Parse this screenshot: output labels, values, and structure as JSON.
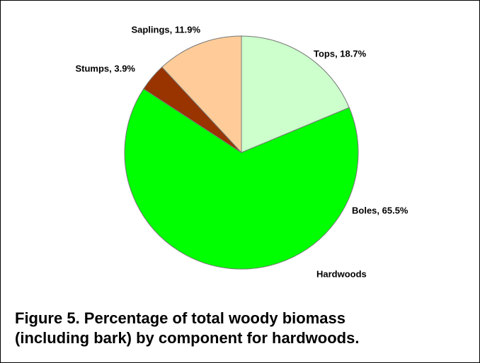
{
  "chart_data": {
    "type": "pie",
    "subtitle": "Hardwoods",
    "caption": [
      "Figure 5. Percentage of total woody biomass",
      "(including bark) by component for hardwoods."
    ],
    "values": [
      18.7,
      65.5,
      3.9,
      11.9
    ],
    "value_labels": [
      "Tops, 18.7%",
      "Boles, 65.5%",
      "Stumps, 3.9%",
      "Saplings, 11.9%"
    ],
    "colors": [
      "#ccffcc",
      "#00ff00",
      "#993300",
      "#ffcc99"
    ]
  }
}
